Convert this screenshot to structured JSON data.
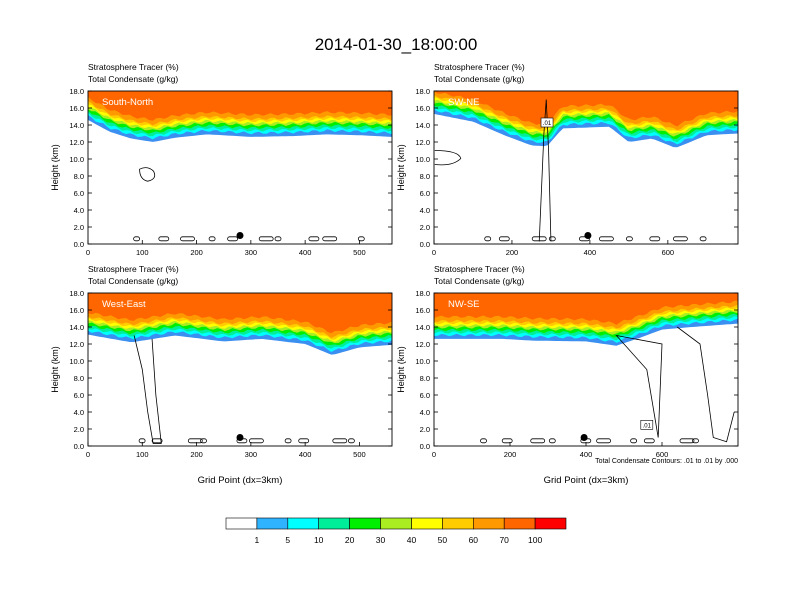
{
  "title": "2014-01-30_18:00:00",
  "footnote": "Total Condensate Contours: .01 to .01 by .000",
  "colorbar": {
    "levels": [
      "1",
      "5",
      "10",
      "20",
      "30",
      "40",
      "50",
      "60",
      "70",
      "100"
    ],
    "colors": [
      "#ffffff",
      "#3a8ff0",
      "#2fb3ff",
      "#00ffff",
      "#00ee9a",
      "#00ee00",
      "#aaee22",
      "#ffff00",
      "#ffcc00",
      "#ff9900",
      "#ff6600",
      "#ff0000"
    ]
  },
  "chart_data": [
    {
      "type": "heatmap",
      "panel_label": "South-North",
      "subtitle_lines": [
        "Stratosphere Tracer   (%)",
        "Total Condensate   (g/kg)"
      ],
      "ylabel": "Height (km)",
      "xlabel": "",
      "xlim": [
        0,
        560
      ],
      "xticks": [
        "0",
        "100",
        "200",
        "300",
        "400",
        "500"
      ],
      "ylim": [
        0,
        18
      ],
      "yticks": [
        "0.0",
        "2.0",
        "4.0",
        "6.0",
        "8.0",
        "10.0",
        "12.0",
        "14.0",
        "16.0",
        "18.0"
      ],
      "tracer_bottom_km": [
        [
          0,
          14.6
        ],
        [
          40,
          13.2
        ],
        [
          80,
          12.4
        ],
        [
          120,
          12.0
        ],
        [
          160,
          12.5
        ],
        [
          220,
          12.9
        ],
        [
          300,
          12.6
        ],
        [
          380,
          12.7
        ],
        [
          440,
          12.9
        ],
        [
          500,
          12.8
        ],
        [
          560,
          12.6
        ]
      ],
      "contour_value": 0.01
    },
    {
      "type": "heatmap",
      "panel_label": "SW-NE",
      "subtitle_lines": [
        "Stratosphere Tracer   (%)",
        "Total Condensate   (g/kg)"
      ],
      "ylabel": "Height (km)",
      "xlabel": "",
      "xlim": [
        0,
        780
      ],
      "xticks": [
        "0",
        "200",
        "400",
        "600"
      ],
      "ylim": [
        0,
        18
      ],
      "yticks": [
        "0.0",
        "2.0",
        "4.0",
        "6.0",
        "8.0",
        "10.0",
        "12.0",
        "14.0",
        "16.0",
        "18.0"
      ],
      "tracer_bottom_km": [
        [
          0,
          15.3
        ],
        [
          100,
          14.4
        ],
        [
          180,
          12.8
        ],
        [
          250,
          11.6
        ],
        [
          290,
          11.5
        ],
        [
          330,
          13.6
        ],
        [
          450,
          13.8
        ],
        [
          500,
          12.0
        ],
        [
          560,
          12.4
        ],
        [
          620,
          11.3
        ],
        [
          700,
          12.8
        ],
        [
          780,
          13.0
        ]
      ],
      "contour_label": ".01",
      "contour_value": 0.01
    },
    {
      "type": "heatmap",
      "panel_label": "West-East",
      "subtitle_lines": [
        "Stratosphere Tracer   (%)",
        "Total Condensate   (g/kg)"
      ],
      "ylabel": "Height (km)",
      "xlabel": "Grid Point (dx=3km)",
      "xlim": [
        0,
        560
      ],
      "xticks": [
        "0",
        "100",
        "200",
        "300",
        "400",
        "500"
      ],
      "ylim": [
        0,
        18
      ],
      "yticks": [
        "0.0",
        "2.0",
        "4.0",
        "6.0",
        "8.0",
        "10.0",
        "12.0",
        "14.0",
        "16.0",
        "18.0"
      ],
      "tracer_bottom_km": [
        [
          0,
          13.1
        ],
        [
          80,
          12.2
        ],
        [
          160,
          13.0
        ],
        [
          250,
          12.3
        ],
        [
          320,
          12.6
        ],
        [
          400,
          12.0
        ],
        [
          450,
          10.7
        ],
        [
          500,
          11.6
        ],
        [
          560,
          11.9
        ]
      ],
      "contour_value": 0.01
    },
    {
      "type": "heatmap",
      "panel_label": "NW-SE",
      "subtitle_lines": [
        "Stratosphere Tracer   (%)",
        "Total Condensate   (g/kg)"
      ],
      "ylabel": "Height (km)",
      "xlabel": "Grid Point (dx=3km)",
      "xlim": [
        0,
        800
      ],
      "xticks": [
        "0",
        "200",
        "400",
        "600"
      ],
      "ylim": [
        0,
        18
      ],
      "yticks": [
        "0.0",
        "2.0",
        "4.0",
        "6.0",
        "8.0",
        "10.0",
        "12.0",
        "14.0",
        "16.0",
        "18.0"
      ],
      "tracer_bottom_km": [
        [
          0,
          12.6
        ],
        [
          180,
          12.6
        ],
        [
          260,
          12.4
        ],
        [
          400,
          12.3
        ],
        [
          480,
          11.8
        ],
        [
          540,
          12.7
        ],
        [
          600,
          13.7
        ],
        [
          680,
          14.0
        ],
        [
          800,
          14.4
        ]
      ],
      "contour_label": ".01",
      "contour_value": 0.01
    }
  ]
}
